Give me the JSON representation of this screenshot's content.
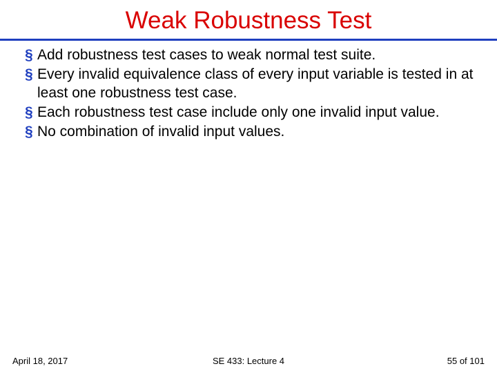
{
  "slide": {
    "title": "Weak Robustness Test",
    "title_color": "#d90000",
    "title_fontsize": 35,
    "title_fontweight": "400",
    "rule_color": "#1f3fbf",
    "rule_thickness": 3,
    "bullet_color": "#1f3fbf",
    "bullet_char": "§",
    "body_fontsize": 21,
    "body_color": "#000000",
    "bullets": [
      "Add robustness test cases to weak normal test suite.",
      "Every invalid equivalence class of every input variable is tested in at least one robustness test case.",
      "Each robustness test case include only one invalid input value.",
      "No combination of invalid input values."
    ],
    "footer": {
      "date": "April 18, 2017",
      "center": "SE 433: Lecture 4",
      "page_current": 55,
      "page_total": 101,
      "fontsize": 13
    }
  }
}
